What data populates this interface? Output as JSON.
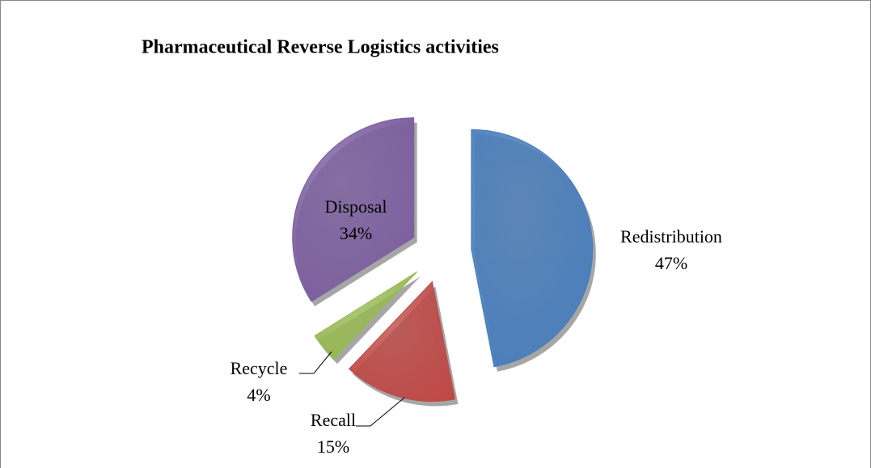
{
  "chart_data": {
    "type": "pie",
    "title": "Pharmaceutical Reverse Logistics activities",
    "categories": [
      "Redistribution",
      "Recall",
      "Recycle",
      "Disposal"
    ],
    "values": [
      47,
      15,
      4,
      34
    ],
    "value_labels": [
      "47%",
      "15%",
      "4%",
      "34%"
    ],
    "colors": [
      "#4a7ebb",
      "#be4b48",
      "#98b954",
      "#7d60a0"
    ]
  }
}
